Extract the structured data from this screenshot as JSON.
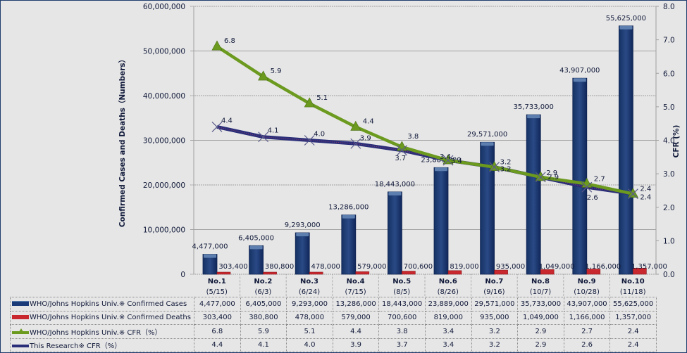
{
  "chart_data": {
    "type": "bar",
    "title": "",
    "categories": [
      "No.1",
      "No.2",
      "No.3",
      "No.4",
      "No.5",
      "No.6",
      "No.7",
      "No.8",
      "No.9",
      "No.10"
    ],
    "category_dates": [
      "(5/15)",
      "(6/3)",
      "(6/24)",
      "(7/15)",
      "(8/5)",
      "(8/26)",
      "(9/16)",
      "(10/7)",
      "(10/28)",
      "(11/18)"
    ],
    "ylabel": "Confirmed Cases and Deaths（Numbers）",
    "y2label": "CFR (%)",
    "ylim": [
      0,
      60000000
    ],
    "y2lim": [
      0,
      8.0
    ],
    "yticks": [
      "0",
      "10,000,000",
      "20,000,000",
      "30,000,000",
      "40,000,000",
      "50,000,000",
      "60,000,000"
    ],
    "y2ticks": [
      "0.0",
      "1.0",
      "2.0",
      "3.0",
      "4.0",
      "5.0",
      "6.0",
      "7.0",
      "8.0"
    ],
    "grid": true,
    "legend_placement": "bottom-table",
    "series": [
      {
        "name": "WHO/Johns Hopkins Univ.※ Confirmed Cases",
        "type": "bar",
        "axis": "left",
        "color": "#1a3a78",
        "values": [
          4477000,
          6405000,
          9293000,
          13286000,
          18443000,
          23889000,
          29571000,
          35733000,
          43907000,
          55625000
        ],
        "labels": [
          "4,477,000",
          "6,405,000",
          "9,293,000",
          "13,286,000",
          "18,443,000",
          "23,889,000",
          "29,571,000",
          "35,733,000",
          "43,907,000",
          "55,625,000"
        ]
      },
      {
        "name": "WHO/Johns Hopkins Univ.※ Confirmed Deaths",
        "type": "bar",
        "axis": "left",
        "color": "#c8282e",
        "values": [
          303400,
          380800,
          478000,
          579000,
          700600,
          819000,
          935000,
          1049000,
          1166000,
          1357000
        ],
        "labels": [
          "303,400",
          "380,800",
          "478,000",
          "579,000",
          "700,600",
          "819,000",
          "935,000",
          "1,049,000",
          "1,166,000",
          "1,357,000"
        ]
      },
      {
        "name": "WHO/Johns Hopkins Univ.※ CFR（%）",
        "type": "line",
        "axis": "right",
        "color": "#6b9a1f",
        "marker": "triangle",
        "values": [
          6.8,
          5.9,
          5.1,
          4.4,
          3.8,
          3.4,
          3.2,
          2.9,
          2.7,
          2.4
        ],
        "labels": [
          "6.8",
          "5.9",
          "5.1",
          "4.4",
          "3.8",
          "3.4",
          "3.2",
          "2.9",
          "2.7",
          "2.4"
        ]
      },
      {
        "name": "This Research※ CFR（%）",
        "type": "line",
        "axis": "right",
        "color": "#2a2e78",
        "marker": "x",
        "values": [
          4.4,
          4.1,
          4.0,
          3.9,
          3.7,
          3.4,
          3.2,
          2.9,
          2.6,
          2.4
        ],
        "labels": [
          "4.4",
          "4.1",
          "4.0",
          "3.9",
          "3.7",
          "3.4",
          "3.2",
          "2.9",
          "2.6",
          "2.4"
        ]
      }
    ]
  }
}
